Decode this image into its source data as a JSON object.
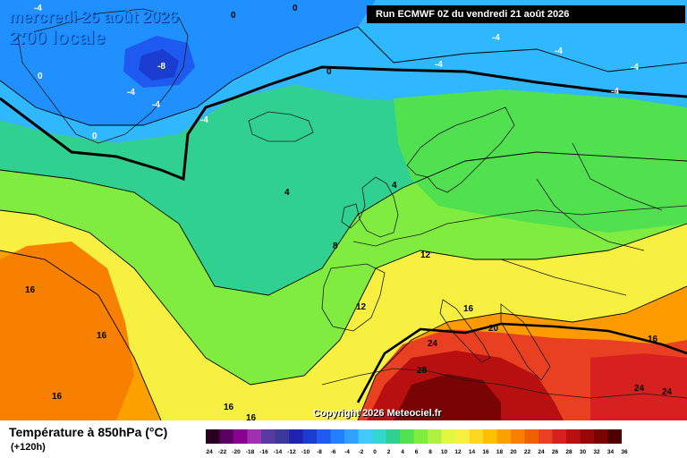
{
  "header": {
    "date_line": "mercredi 26 août 2026",
    "time_line": "2:00 locale",
    "run_info": "Run ECMWF 0Z du vendredi 21 août 2026"
  },
  "footer": {
    "title": "Température à 850hPa (°C)",
    "lead_time": "(+120h)",
    "copyright": "Copyright 2026 Meteociel.fr"
  },
  "legend": {
    "ticks": [
      "-24",
      "-22",
      "-20",
      "-18",
      "-16",
      "-14",
      "-12",
      "-10",
      "-8",
      "-6",
      "-4",
      "-2",
      "0",
      "2",
      "4",
      "6",
      "8",
      "10",
      "12",
      "14",
      "16",
      "18",
      "20",
      "22",
      "24",
      "26",
      "28",
      "30",
      "32",
      "34",
      "36"
    ],
    "colors": [
      "#2a0020",
      "#5a0060",
      "#8a0090",
      "#a030b0",
      "#5a3aa0",
      "#3a3a9a",
      "#2222b0",
      "#1a3cd0",
      "#1e5af0",
      "#2080ff",
      "#30a0ff",
      "#40c8ff",
      "#30d8d0",
      "#30d090",
      "#50e050",
      "#80ec40",
      "#b0f040",
      "#e0f840",
      "#f8f040",
      "#fcd820",
      "#fcc000",
      "#fca000",
      "#f88000",
      "#f06000",
      "#e84020",
      "#d82020",
      "#b81010",
      "#980808",
      "#780404",
      "#500000"
    ]
  },
  "map": {
    "labels": [
      {
        "text": "-4"
      },
      {
        "text": "0"
      },
      {
        "text": "0"
      },
      {
        "text": "-8"
      },
      {
        "text": "-4"
      },
      {
        "text": "-4"
      },
      {
        "text": "-4"
      },
      {
        "text": "0"
      },
      {
        "text": "0"
      },
      {
        "text": "-4"
      },
      {
        "text": "-4"
      },
      {
        "text": "-4"
      },
      {
        "text": "-4"
      },
      {
        "text": "-4"
      },
      {
        "text": "0"
      },
      {
        "text": "4"
      },
      {
        "text": "4"
      },
      {
        "text": "8"
      },
      {
        "text": "12"
      },
      {
        "text": "12"
      },
      {
        "text": "16"
      },
      {
        "text": "16"
      },
      {
        "text": "16"
      },
      {
        "text": "16"
      },
      {
        "text": "16"
      },
      {
        "text": "16"
      },
      {
        "text": "16"
      },
      {
        "text": "20"
      },
      {
        "text": "24"
      },
      {
        "text": "28"
      },
      {
        "text": "24"
      },
      {
        "text": "24"
      }
    ]
  }
}
